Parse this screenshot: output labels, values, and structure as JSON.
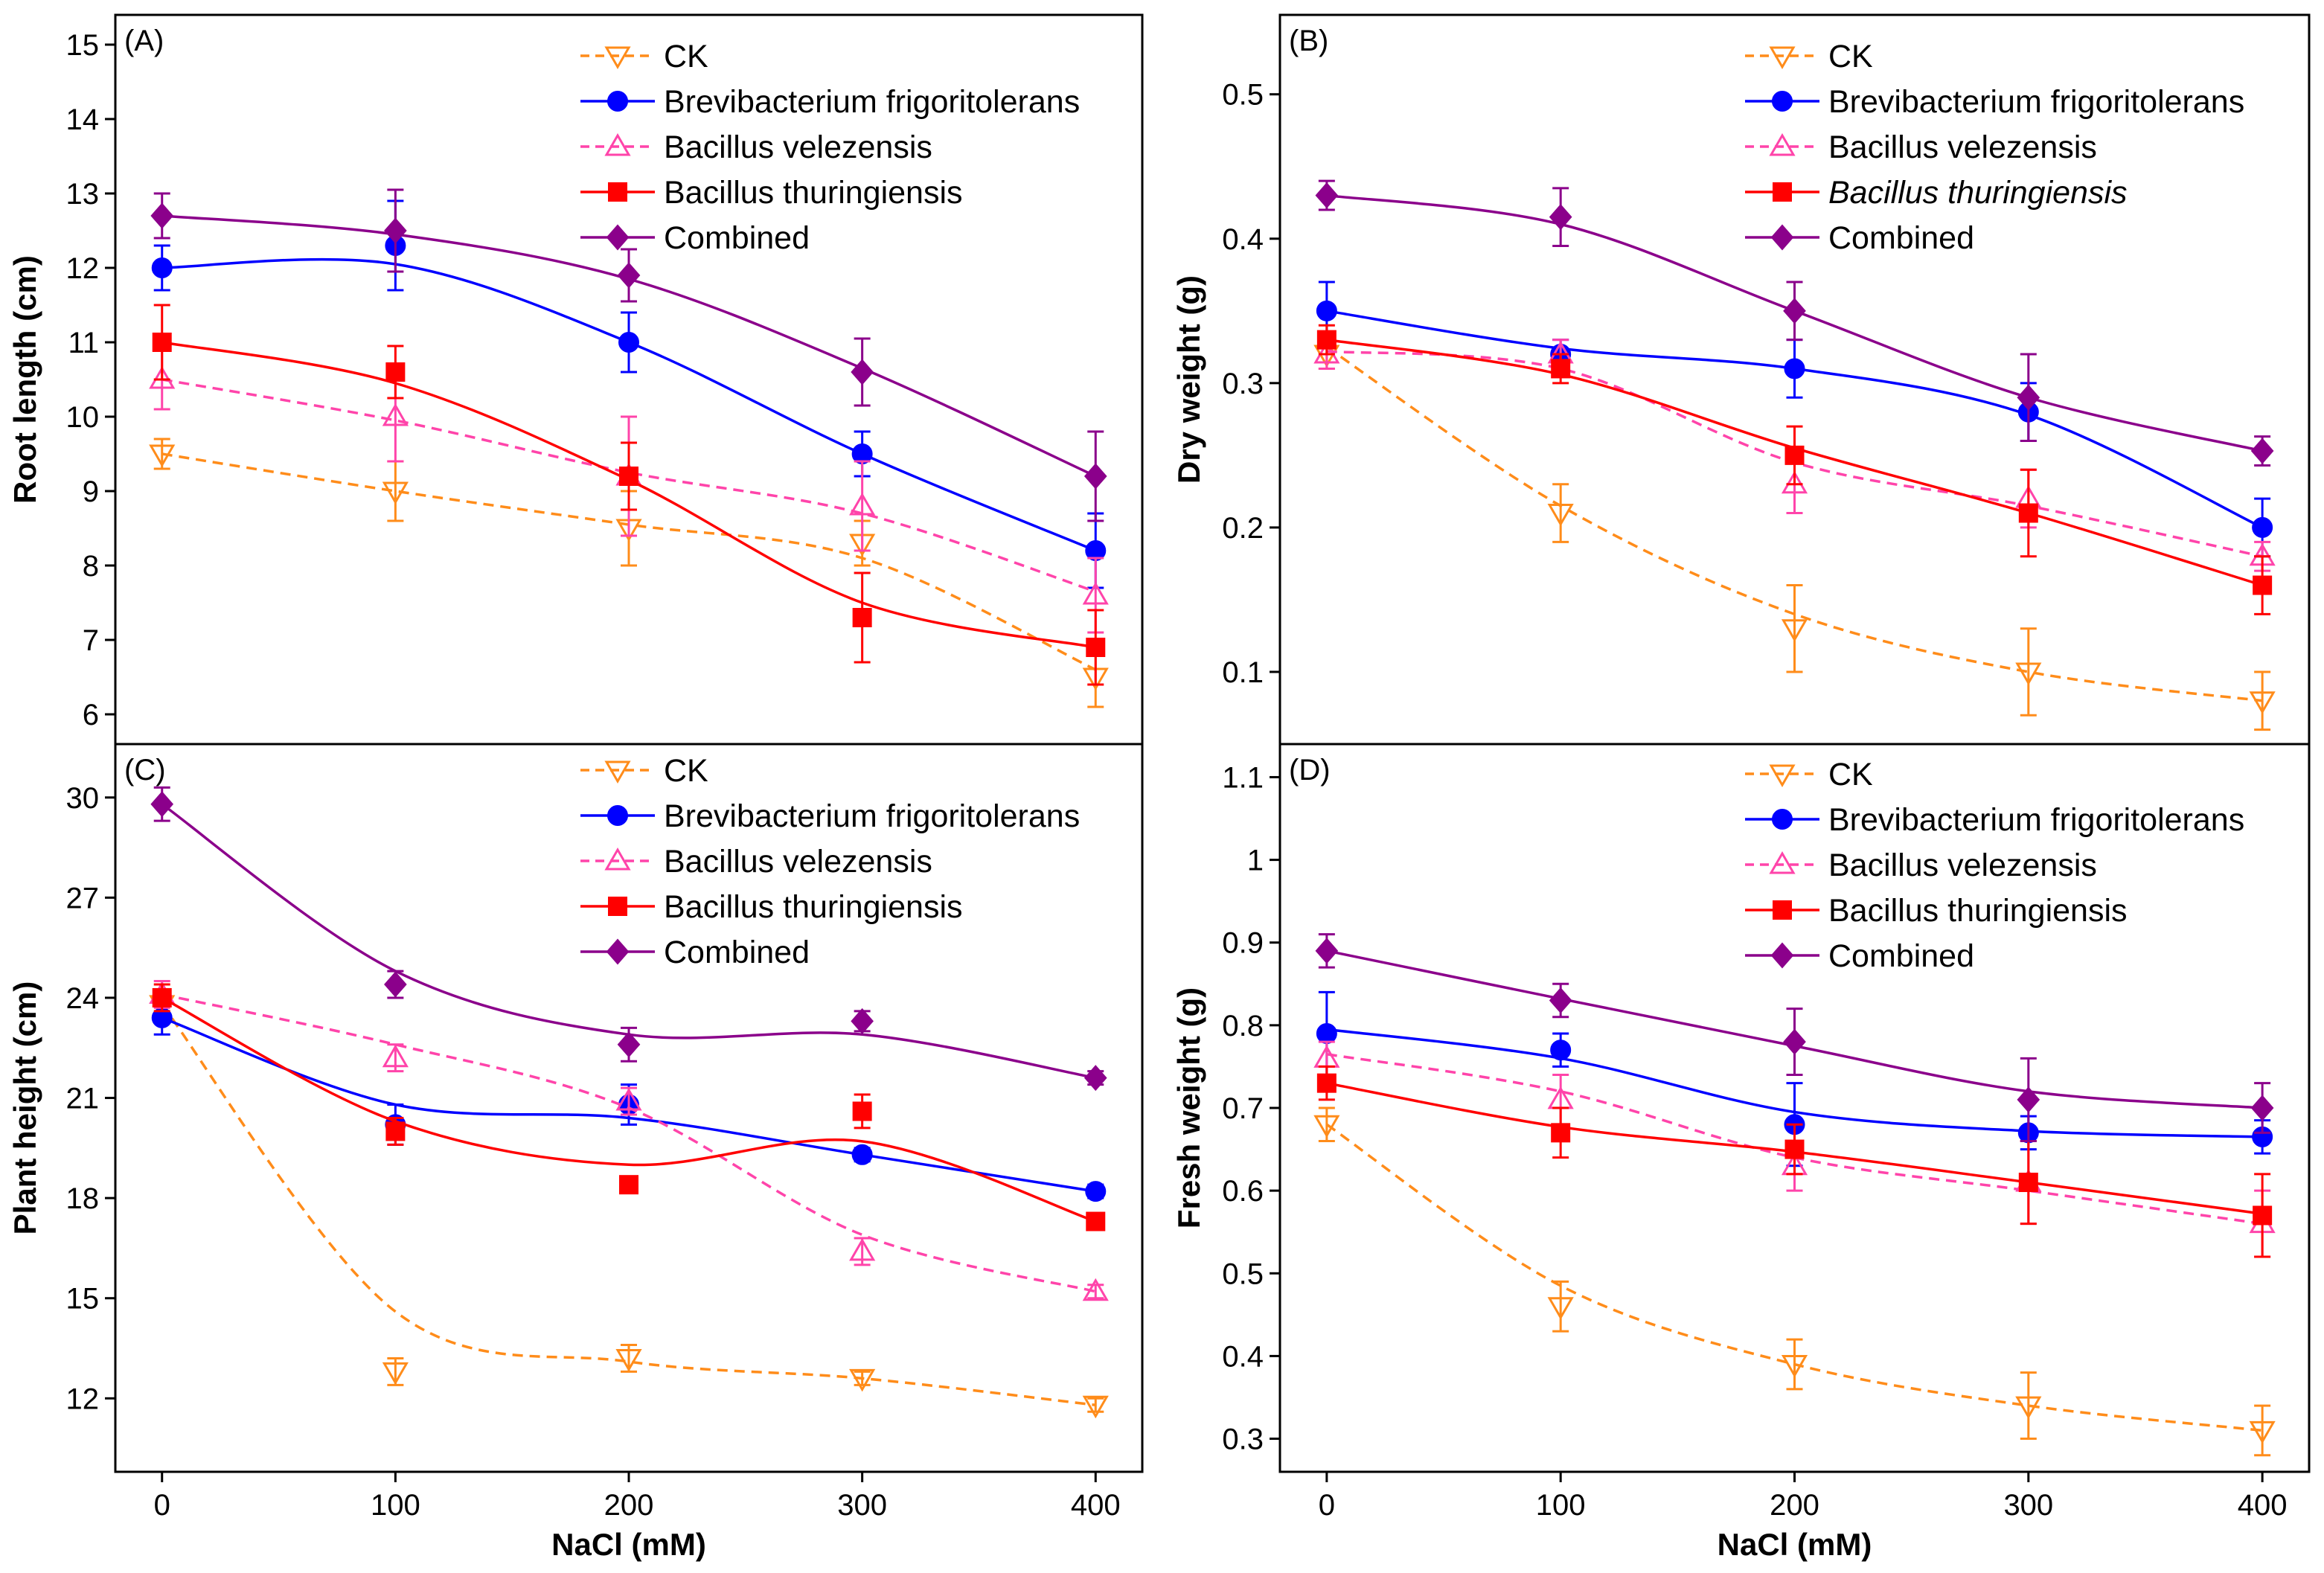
{
  "chart_data": [
    {
      "type": "line",
      "panel_label": "(A)",
      "xlabel": "",
      "ylabel": "Root length (cm)",
      "xlim": [
        -20,
        420
      ],
      "ylim": [
        5.6,
        15.4
      ],
      "x": [
        0,
        100,
        200,
        300,
        400
      ],
      "xticks": [
        0,
        100,
        200,
        300,
        400
      ],
      "yticks": [
        6,
        7,
        8,
        9,
        10,
        11,
        12,
        13,
        14,
        15
      ],
      "series": [
        {
          "name": "CK",
          "values": [
            9.5,
            9.0,
            8.5,
            8.3,
            6.5
          ],
          "errors": [
            0.2,
            0.4,
            0.5,
            0.3,
            0.4
          ],
          "fit": [
            9.5,
            9.0,
            8.55,
            8.1,
            6.6
          ],
          "color": "#ff8c1a",
          "marker": "tri-down",
          "dash": true
        },
        {
          "name": "Brevibacterium frigoritolerans",
          "values": [
            12.0,
            12.3,
            11.0,
            9.5,
            8.2
          ],
          "errors": [
            0.3,
            0.6,
            0.4,
            0.3,
            0.5
          ],
          "fit": [
            12.0,
            12.05,
            11.0,
            9.5,
            8.2
          ],
          "color": "#0000ff",
          "marker": "circle",
          "dash": false
        },
        {
          "name": "Bacillus velezensis",
          "values": [
            10.5,
            10.0,
            9.2,
            8.8,
            7.6
          ],
          "errors": [
            0.4,
            0.6,
            0.8,
            0.6,
            0.5
          ],
          "fit": [
            10.5,
            9.95,
            9.25,
            8.7,
            7.65
          ],
          "color": "#ff44aa",
          "marker": "tri-up",
          "dash": true
        },
        {
          "name": "Bacillus thuringiensis",
          "values": [
            11.0,
            10.6,
            9.2,
            7.3,
            6.9
          ],
          "errors": [
            0.5,
            0.35,
            0.45,
            0.6,
            0.5
          ],
          "fit": [
            11.0,
            10.45,
            9.15,
            7.5,
            6.9
          ],
          "color": "#ff0000",
          "marker": "square",
          "dash": false
        },
        {
          "name": "Combined",
          "values": [
            12.7,
            12.5,
            11.9,
            10.6,
            9.2
          ],
          "errors": [
            0.3,
            0.55,
            0.35,
            0.45,
            0.6
          ],
          "fit": [
            12.7,
            12.45,
            11.85,
            10.65,
            9.2
          ],
          "color": "#8b008b",
          "marker": "diamond",
          "dash": false
        }
      ]
    },
    {
      "type": "line",
      "panel_label": "(B)",
      "xlabel": "",
      "ylabel": "Dry weight (g)",
      "xlim": [
        -20,
        420
      ],
      "ylim": [
        0.05,
        0.555
      ],
      "x": [
        0,
        100,
        200,
        300,
        400
      ],
      "xticks": [
        0,
        100,
        200,
        300,
        400
      ],
      "yticks": [
        0.1,
        0.2,
        0.3,
        0.4,
        0.5
      ],
      "series": [
        {
          "name": "CK",
          "values": [
            0.32,
            0.21,
            0.13,
            0.1,
            0.08
          ],
          "errors": [
            0.01,
            0.02,
            0.03,
            0.03,
            0.02
          ],
          "fit": [
            0.325,
            0.215,
            0.14,
            0.1,
            0.08
          ],
          "color": "#ff8c1a",
          "marker": "tri-down",
          "dash": true
        },
        {
          "name": "Brevibacterium frigoritolerans",
          "values": [
            0.35,
            0.32,
            0.31,
            0.28,
            0.2
          ],
          "errors": [
            0.02,
            0.01,
            0.02,
            0.02,
            0.02
          ],
          "fit": [
            0.35,
            0.324,
            0.31,
            0.278,
            0.2
          ],
          "color": "#0000ff",
          "marker": "circle",
          "dash": false
        },
        {
          "name": "Bacillus velezensis",
          "values": [
            0.32,
            0.32,
            0.23,
            0.22,
            0.18
          ],
          "errors": [
            0.01,
            0.01,
            0.02,
            0.02,
            0.01
          ],
          "fit": [
            0.322,
            0.31,
            0.245,
            0.215,
            0.18
          ],
          "color": "#ff44aa",
          "marker": "tri-up",
          "dash": true
        },
        {
          "name": "Bacillus thuringiensis",
          "values": [
            0.33,
            0.31,
            0.25,
            0.21,
            0.16
          ],
          "errors": [
            0.01,
            0.01,
            0.02,
            0.03,
            0.02
          ],
          "fit": [
            0.33,
            0.306,
            0.255,
            0.21,
            0.16
          ],
          "color": "#ff0000",
          "marker": "square",
          "dash": false
        },
        {
          "name": "Combined",
          "values": [
            0.43,
            0.415,
            0.35,
            0.29,
            0.253
          ],
          "errors": [
            0.01,
            0.02,
            0.02,
            0.03,
            0.01
          ],
          "fit": [
            0.43,
            0.41,
            0.35,
            0.29,
            0.253
          ],
          "color": "#8b008b",
          "marker": "diamond",
          "dash": false
        }
      ]
    },
    {
      "type": "line",
      "panel_label": "(C)",
      "xlabel": "NaCl (mM)",
      "ylabel": "Plant height (cm)",
      "xlim": [
        -20,
        420
      ],
      "ylim": [
        9.8,
        31.6
      ],
      "x": [
        0,
        100,
        200,
        300,
        400
      ],
      "xticks": [
        0,
        100,
        200,
        300,
        400
      ],
      "yticks": [
        12,
        15,
        18,
        21,
        24,
        27,
        30
      ],
      "series": [
        {
          "name": "CK",
          "values": [
            23.8,
            12.8,
            13.2,
            12.6,
            11.8
          ],
          "errors": [
            0.4,
            0.4,
            0.4,
            0.2,
            0.2
          ],
          "fit": [
            23.8,
            14.6,
            13.1,
            12.6,
            11.8
          ],
          "color": "#ff8c1a",
          "marker": "tri-down",
          "dash": true
        },
        {
          "name": "Brevibacterium frigoritolerans",
          "values": [
            23.4,
            20.2,
            20.8,
            19.3,
            18.2
          ],
          "errors": [
            0.5,
            0.6,
            0.6,
            0.2,
            0.2
          ],
          "fit": [
            23.4,
            20.8,
            20.4,
            19.3,
            18.2
          ],
          "color": "#0000ff",
          "marker": "circle",
          "dash": false
        },
        {
          "name": "Bacillus velezensis",
          "values": [
            24.1,
            22.2,
            20.9,
            16.4,
            15.2
          ],
          "errors": [
            0.4,
            0.4,
            0.4,
            0.4,
            0.2
          ],
          "fit": [
            24.1,
            22.6,
            20.7,
            16.9,
            15.2
          ],
          "color": "#ff44aa",
          "marker": "tri-up",
          "dash": true
        },
        {
          "name": "Bacillus thuringiensis",
          "values": [
            24.0,
            20.0,
            18.4,
            20.6,
            17.3
          ],
          "errors": [
            0.4,
            0.4,
            0.2,
            0.5,
            0.2
          ],
          "fit": [
            24.0,
            20.3,
            19.0,
            19.7,
            17.3
          ],
          "color": "#ff0000",
          "marker": "square",
          "dash": false
        },
        {
          "name": "Combined",
          "values": [
            29.8,
            24.4,
            22.6,
            23.3,
            21.6
          ],
          "errors": [
            0.5,
            0.4,
            0.5,
            0.3,
            0.2
          ],
          "fit": [
            29.8,
            24.8,
            22.9,
            22.9,
            21.6
          ],
          "color": "#8b008b",
          "marker": "diamond",
          "dash": false
        }
      ]
    },
    {
      "type": "line",
      "panel_label": "(D)",
      "xlabel": "NaCl (mM)",
      "ylabel": "Fresh weight (g)",
      "xlim": [
        -20,
        420
      ],
      "ylim": [
        0.26,
        1.14
      ],
      "x": [
        0,
        100,
        200,
        300,
        400
      ],
      "xticks": [
        0,
        100,
        200,
        300,
        400
      ],
      "yticks": [
        0.3,
        0.4,
        0.5,
        0.6,
        0.7,
        0.8,
        0.9,
        1.0,
        1.1
      ],
      "series": [
        {
          "name": "CK",
          "values": [
            0.68,
            0.46,
            0.39,
            0.34,
            0.31
          ],
          "errors": [
            0.02,
            0.03,
            0.03,
            0.04,
            0.03
          ],
          "fit": [
            0.68,
            0.485,
            0.39,
            0.34,
            0.31
          ],
          "color": "#ff8c1a",
          "marker": "tri-down",
          "dash": true
        },
        {
          "name": "Brevibacterium frigoritolerans",
          "values": [
            0.79,
            0.77,
            0.68,
            0.67,
            0.665
          ],
          "errors": [
            0.05,
            0.02,
            0.05,
            0.02,
            0.02
          ],
          "fit": [
            0.795,
            0.76,
            0.695,
            0.672,
            0.665
          ],
          "color": "#0000ff",
          "marker": "circle",
          "dash": false
        },
        {
          "name": "Bacillus velezensis",
          "values": [
            0.76,
            0.71,
            0.63,
            0.61,
            0.56
          ],
          "errors": [
            0.02,
            0.03,
            0.03,
            0.05,
            0.04
          ],
          "fit": [
            0.765,
            0.72,
            0.64,
            0.6,
            0.56
          ],
          "color": "#ff44aa",
          "marker": "tri-up",
          "dash": true
        },
        {
          "name": "Bacillus thuringiensis",
          "values": [
            0.73,
            0.67,
            0.65,
            0.61,
            0.57
          ],
          "errors": [
            0.02,
            0.03,
            0.03,
            0.05,
            0.05
          ],
          "fit": [
            0.73,
            0.677,
            0.647,
            0.61,
            0.572
          ],
          "color": "#ff0000",
          "marker": "square",
          "dash": false
        },
        {
          "name": "Combined",
          "values": [
            0.89,
            0.83,
            0.78,
            0.71,
            0.7
          ],
          "errors": [
            0.02,
            0.02,
            0.04,
            0.05,
            0.03
          ],
          "fit": [
            0.89,
            0.832,
            0.775,
            0.72,
            0.7
          ],
          "color": "#8b008b",
          "marker": "diamond",
          "dash": false
        }
      ]
    }
  ]
}
